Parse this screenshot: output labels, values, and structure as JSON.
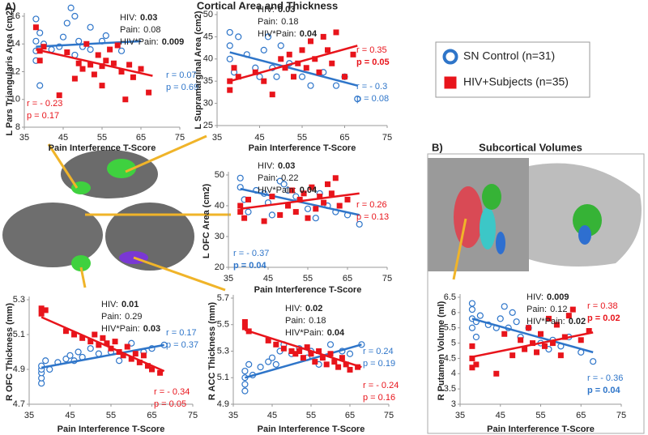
{
  "header": {
    "panel_a": "A)",
    "title_a": "Cortical Area and Thickness",
    "panel_b": "B)",
    "title_b": "Subcortical Volumes"
  },
  "legend": [
    {
      "label": "SN Control (n=31)",
      "color": "#2e75c9",
      "marker": "circle"
    },
    {
      "label": "HIV+Subjects (n=35)",
      "color": "#e8141b",
      "marker": "square"
    }
  ],
  "chart_data": [
    {
      "type": "scatter",
      "y_label": "L Pars Triangularis Area (cm2)",
      "x_label": "Pain Interference T-Score",
      "xlim": [
        35,
        75
      ],
      "xticks": [
        35,
        45,
        55,
        65,
        75
      ],
      "ylim": [
        8,
        16
      ],
      "yticks": [
        8,
        10,
        12,
        14,
        16
      ],
      "series": [
        {
          "color": "#2e75c9",
          "marker": "circle",
          "x": [
            38,
            38,
            38,
            38,
            39,
            39,
            40,
            42,
            44,
            45,
            46,
            47,
            48,
            48,
            49,
            50,
            52,
            52,
            55,
            56,
            60
          ],
          "values": [
            15.8,
            14.2,
            13.5,
            12.8,
            11.0,
            14.8,
            14,
            13.6,
            13.8,
            14.5,
            15.5,
            16.6,
            16,
            13.2,
            14.2,
            13.8,
            15.2,
            13.6,
            14.2,
            14.6,
            13.5
          ],
          "fit": {
            "x": [
              38,
              65
            ],
            "values": [
              13.8,
              14.2
            ]
          }
        },
        {
          "color": "#e8141b",
          "marker": "square",
          "x": [
            38,
            39,
            39,
            40,
            44,
            46,
            48,
            49,
            50,
            51,
            52,
            53,
            54,
            55,
            55,
            56,
            57,
            58,
            59,
            60,
            61,
            62,
            63,
            65,
            67
          ],
          "values": [
            15.2,
            13.5,
            12.8,
            13.8,
            10.3,
            13.4,
            11.5,
            12.6,
            12.2,
            14,
            12.5,
            11.8,
            13.2,
            12.4,
            11,
            12.8,
            13.6,
            12.6,
            13.9,
            12,
            10,
            12.5,
            11.6,
            12.2,
            10.5
          ],
          "fit": {
            "x": [
              38,
              68
            ],
            "values": [
              13.6,
              11.7
            ]
          }
        }
      ],
      "stats": [
        {
          "label": "HIV:",
          "value": "0.03",
          "bold": true
        },
        {
          "label": "Pain:",
          "value": "0.08",
          "bold": false
        },
        {
          "label": "HIV*Pain:",
          "value": "0.009",
          "bold": true
        }
      ],
      "blue_stats": [
        {
          "text": "r = 0.07",
          "bold": false
        },
        {
          "text": "p = 0.69",
          "bold": false
        }
      ],
      "red_stats": [
        {
          "text": "r = - 0.23",
          "bold": false
        },
        {
          "text": "p = 0.17",
          "bold": false
        }
      ]
    },
    {
      "type": "scatter",
      "y_label": "L Supramarginal Area (cm2)",
      "x_label": "Pain Interference T-Score",
      "xlim": [
        35,
        75
      ],
      "xticks": [
        35,
        45,
        55,
        65,
        75
      ],
      "ylim": [
        25,
        50
      ],
      "yticks": [
        25,
        30,
        35,
        40,
        45,
        50
      ],
      "series": [
        {
          "color": "#2e75c9",
          "marker": "circle",
          "x": [
            38,
            38,
            38,
            39,
            40,
            42,
            44,
            45,
            46,
            47,
            48,
            49,
            50,
            52,
            55,
            57,
            60,
            63,
            65,
            68
          ],
          "values": [
            46,
            43,
            40,
            37,
            45,
            41,
            38,
            36,
            42,
            45,
            38,
            36,
            43,
            39,
            36,
            34,
            37,
            34,
            36,
            31
          ],
          "fit": {
            "x": [
              38,
              68
            ],
            "values": [
              41.5,
              34
            ]
          }
        },
        {
          "color": "#e8141b",
          "marker": "square",
          "x": [
            38,
            38,
            39,
            40,
            44,
            46,
            48,
            50,
            51,
            52,
            53,
            54,
            55,
            56,
            57,
            58,
            59,
            60,
            61,
            62,
            63,
            65,
            67
          ],
          "values": [
            35,
            33,
            38,
            36,
            37,
            35,
            32,
            40,
            38,
            41,
            36,
            39,
            42,
            38,
            44,
            40,
            37,
            45,
            42,
            39,
            46,
            36,
            41
          ],
          "fit": {
            "x": [
              38,
              68
            ],
            "values": [
              35,
              43
            ]
          }
        }
      ],
      "stats": [
        {
          "label": "HIV:",
          "value": "0.03",
          "bold": true
        },
        {
          "label": "Pain:",
          "value": "0.18",
          "bold": false
        },
        {
          "label": "HIV*Pain:",
          "value": "0.04",
          "bold": true
        }
      ],
      "blue_stats": [
        {
          "text": "r = - 0.3",
          "bold": false
        },
        {
          "text": "p = 0.08",
          "bold": false
        }
      ],
      "red_stats": [
        {
          "text": "r = 0.35",
          "bold": false
        },
        {
          "text": "p = 0.05",
          "bold": true
        }
      ]
    },
    {
      "type": "scatter",
      "y_label": "L OFC Area (cm2)",
      "x_label": "Pain Interference T-Score",
      "xlim": [
        35,
        75
      ],
      "xticks": [
        35,
        45,
        55,
        65,
        75
      ],
      "ylim": [
        20,
        50
      ],
      "yticks": [
        20,
        30,
        40,
        50
      ],
      "series": [
        {
          "color": "#2e75c9",
          "marker": "circle",
          "x": [
            38,
            38,
            39,
            40,
            42,
            44,
            45,
            46,
            48,
            49,
            50,
            52,
            55,
            57,
            58,
            60,
            62,
            65,
            68
          ],
          "values": [
            49,
            46,
            42,
            38,
            45,
            44,
            41,
            37,
            48,
            47,
            45,
            43,
            39,
            36,
            44,
            40,
            38,
            37,
            34
          ],
          "fit": {
            "x": [
              38,
              68
            ],
            "values": [
              45.5,
              37
            ]
          }
        },
        {
          "color": "#e8141b",
          "marker": "square",
          "x": [
            38,
            38,
            39,
            40,
            44,
            46,
            48,
            50,
            51,
            52,
            53,
            54,
            55,
            56,
            57,
            58,
            59,
            60,
            61,
            62,
            63,
            65
          ],
          "values": [
            40,
            38,
            36,
            42,
            35,
            43,
            37,
            40,
            45,
            38,
            42,
            44,
            36,
            46,
            39,
            43,
            41,
            47,
            44,
            49,
            40,
            42
          ],
          "fit": {
            "x": [
              38,
              68
            ],
            "values": [
              39,
              44
            ]
          }
        }
      ],
      "stats": [
        {
          "label": "HIV:",
          "value": "0.03",
          "bold": true
        },
        {
          "label": "Pain:",
          "value": "0.22",
          "bold": false
        },
        {
          "label": "HIV*Pain:",
          "value": "0.04",
          "bold": true
        }
      ],
      "blue_stats": [
        {
          "text": "r = - 0.37",
          "bold": false
        },
        {
          "text": "p = 0.04",
          "bold": true
        }
      ],
      "red_stats": [
        {
          "text": "r = 0.26",
          "bold": false
        },
        {
          "text": "p = 0.13",
          "bold": false
        }
      ]
    },
    {
      "type": "scatter",
      "y_label": "R OFC Thickness (mm)",
      "x_label": "Pain Interference T-Score",
      "xlim": [
        35,
        75
      ],
      "xticks": [
        35,
        45,
        55,
        65,
        75
      ],
      "ylim": [
        4.7,
        5.3
      ],
      "yticks": [
        4.7,
        4.9,
        5.1,
        5.3
      ],
      "series": [
        {
          "color": "#2e75c9",
          "marker": "circle",
          "x": [
            38,
            38,
            38,
            38,
            38,
            39,
            40,
            42,
            44,
            45,
            46,
            47,
            48,
            50,
            52,
            55,
            57,
            60,
            63,
            65,
            68
          ],
          "values": [
            4.82,
            4.85,
            4.88,
            4.9,
            4.92,
            4.95,
            4.9,
            4.94,
            4.96,
            4.98,
            4.95,
            5.0,
            4.97,
            5.02,
            4.99,
            5.0,
            4.95,
            5.05,
            5.0,
            5.02,
            5.04
          ],
          "fit": {
            "x": [
              38,
              68
            ],
            "values": [
              4.91,
              5.04
            ]
          }
        },
        {
          "color": "#e8141b",
          "marker": "square",
          "x": [
            38,
            38,
            39,
            44,
            46,
            48,
            50,
            51,
            52,
            53,
            54,
            55,
            56,
            57,
            58,
            59,
            60,
            61,
            62,
            63,
            64,
            65,
            67
          ],
          "values": [
            5.25,
            5.22,
            5.24,
            5.12,
            5.1,
            5.08,
            5.06,
            5.1,
            5.04,
            5.08,
            5.05,
            5.02,
            5.06,
            5.0,
            4.98,
            5.03,
            4.96,
            4.99,
            4.94,
            4.98,
            4.92,
            4.9,
            4.88
          ],
          "fit": {
            "x": [
              38,
              68
            ],
            "values": [
              5.2,
              4.89
            ]
          }
        }
      ],
      "stats": [
        {
          "label": "HIV:",
          "value": "0.01",
          "bold": true
        },
        {
          "label": "Pain:",
          "value": "0.29",
          "bold": false
        },
        {
          "label": "HIV*Pain:",
          "value": "0.03",
          "bold": true
        }
      ],
      "blue_stats": [
        {
          "text": "r = 0.17",
          "bold": false
        },
        {
          "text": "p = 0.37",
          "bold": false
        }
      ],
      "red_stats": [
        {
          "text": "r = - 0.34",
          "bold": false
        },
        {
          "text": "p = 0.05",
          "bold": false
        }
      ]
    },
    {
      "type": "scatter",
      "y_label": "R ACC Thickness (mm)",
      "x_label": "Pain Interference T-Score",
      "xlim": [
        35,
        75
      ],
      "xticks": [
        35,
        45,
        55,
        65,
        75
      ],
      "ylim": [
        4.9,
        5.7
      ],
      "yticks": [
        4.9,
        5.1,
        5.3,
        5.5,
        5.7
      ],
      "series": [
        {
          "color": "#2e75c9",
          "marker": "circle",
          "x": [
            38,
            38,
            38,
            38,
            39,
            40,
            42,
            44,
            45,
            46,
            47,
            48,
            50,
            52,
            54,
            55,
            57,
            60,
            63,
            65,
            68
          ],
          "values": [
            5.0,
            5.05,
            5.1,
            5.15,
            5.2,
            5.12,
            5.18,
            5.22,
            5.25,
            5.2,
            5.3,
            5.35,
            5.28,
            5.32,
            5.25,
            5.3,
            5.2,
            5.35,
            5.3,
            5.28,
            5.35
          ],
          "fit": {
            "x": [
              38,
              68
            ],
            "values": [
              5.1,
              5.35
            ]
          }
        },
        {
          "color": "#e8141b",
          "marker": "square",
          "x": [
            38,
            38,
            39,
            44,
            46,
            48,
            50,
            51,
            52,
            53,
            54,
            55,
            56,
            57,
            58,
            59,
            60,
            61,
            62,
            63,
            64,
            65,
            67
          ],
          "values": [
            5.52,
            5.48,
            5.45,
            5.38,
            5.35,
            5.32,
            5.3,
            5.28,
            5.3,
            5.25,
            5.33,
            5.28,
            5.22,
            5.3,
            5.25,
            5.2,
            5.28,
            5.22,
            5.18,
            5.25,
            5.2,
            5.16,
            5.18
          ],
          "fit": {
            "x": [
              38,
              68
            ],
            "values": [
              5.46,
              5.18
            ]
          }
        }
      ],
      "stats": [
        {
          "label": "HIV:",
          "value": "0.02",
          "bold": true
        },
        {
          "label": "Pain:",
          "value": "0.18",
          "bold": false
        },
        {
          "label": "HIV*Pain:",
          "value": "0.04",
          "bold": true
        }
      ],
      "blue_stats": [
        {
          "text": "r = 0.24",
          "bold": false
        },
        {
          "text": "p = 0.19",
          "bold": false
        }
      ],
      "red_stats": [
        {
          "text": "r = - 0.24",
          "bold": false
        },
        {
          "text": "p = 0.16",
          "bold": false
        }
      ]
    },
    {
      "type": "scatter",
      "y_label": "R Putamen Volume (ml)",
      "x_label": "Pain Interference T-Score",
      "xlim": [
        35,
        75
      ],
      "xticks": [
        35,
        45,
        55,
        65,
        75
      ],
      "ylim": [
        3,
        6.5
      ],
      "yticks": [
        3,
        3.5,
        4,
        4.5,
        5,
        5.5,
        6,
        6.5
      ],
      "series": [
        {
          "color": "#2e75c9",
          "marker": "circle",
          "x": [
            38,
            38,
            38,
            38,
            39,
            39,
            40,
            42,
            44,
            45,
            46,
            47,
            48,
            49,
            50,
            52,
            55,
            57,
            58,
            60,
            62,
            65,
            68
          ],
          "values": [
            6.3,
            6.1,
            5.8,
            5.5,
            5.7,
            5.2,
            5.9,
            5.6,
            5.5,
            5.8,
            6.2,
            5.5,
            6.0,
            5.7,
            5.2,
            5.5,
            5.0,
            4.8,
            5.1,
            4.9,
            5.2,
            4.7,
            4.4
          ],
          "fit": {
            "x": [
              38,
              68
            ],
            "values": [
              5.8,
              4.7
            ]
          }
        },
        {
          "color": "#e8141b",
          "marker": "square",
          "x": [
            38,
            38,
            38,
            39,
            44,
            46,
            48,
            50,
            51,
            52,
            53,
            54,
            55,
            56,
            57,
            58,
            59,
            60,
            61,
            62,
            63,
            65,
            67
          ],
          "values": [
            4.2,
            4.5,
            4.9,
            4.3,
            4.0,
            5.3,
            4.6,
            5.1,
            4.8,
            5.5,
            5.0,
            4.7,
            5.3,
            4.9,
            5.8,
            5.0,
            5.6,
            4.6,
            5.2,
            5.9,
            6.1,
            5.1,
            5.4
          ],
          "fit": {
            "x": [
              38,
              68
            ],
            "values": [
              4.55,
              5.35
            ]
          }
        }
      ],
      "stats": [
        {
          "label": "HIV:",
          "value": "0.009",
          "bold": true
        },
        {
          "label": "Pain:",
          "value": "0.12",
          "bold": false
        },
        {
          "label": "HIV*Pain:",
          "value": "0.02",
          "bold": true
        }
      ],
      "blue_stats": [
        {
          "text": "r = - 0.36",
          "bold": false
        },
        {
          "text": "p = 0.04",
          "bold": true
        }
      ],
      "red_stats": [
        {
          "text": "r = 0.38",
          "bold": false
        },
        {
          "text": "p = 0.02",
          "bold": true
        }
      ]
    }
  ]
}
